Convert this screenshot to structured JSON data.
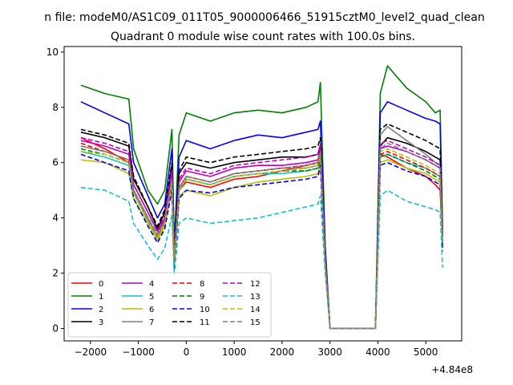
{
  "figure": {
    "suptitle": "n file: modeM0/AS1C09_011T05_9000006466_51915cztM0_level2_quad_clean",
    "offset_text": "+4.84e8"
  },
  "chart_data": {
    "type": "line",
    "title": "Quadrant 0 module wise count rates with 100.0s bins.",
    "xlabel": "",
    "ylabel": "",
    "x_offset": 484000000,
    "xlim": [
      -2550,
      5750
    ],
    "ylim": [
      -0.45,
      10.2
    ],
    "x_ticks": [
      -2000,
      -1000,
      0,
      1000,
      2000,
      3000,
      4000,
      5000
    ],
    "x_tick_labels": [
      "−2000",
      "−1000",
      "0",
      "1000",
      "2000",
      "3000",
      "4000",
      "5000"
    ],
    "y_ticks": [
      0,
      2,
      4,
      6,
      8,
      10
    ],
    "y_tick_labels": [
      "0",
      "2",
      "4",
      "6",
      "8",
      "10"
    ],
    "grid": false,
    "legend_position": "lower-left",
    "legend_columns": 4,
    "x": [
      -2200,
      -1700,
      -1200,
      -1100,
      -800,
      -600,
      -450,
      -300,
      -250,
      -150,
      0,
      500,
      1000,
      1500,
      2000,
      2500,
      2750,
      2800,
      2900,
      3000,
      3500,
      3950,
      4050,
      4200,
      4600,
      5000,
      5200,
      5300,
      5350
    ],
    "series": [
      {
        "name": "0",
        "color": "#ff0000",
        "dash": "solid",
        "values": [
          6.9,
          6.5,
          6.0,
          5.0,
          4.0,
          3.3,
          4.0,
          5.5,
          2.5,
          5.0,
          5.3,
          5.1,
          5.4,
          5.5,
          5.7,
          5.9,
          6.0,
          6.5,
          2.5,
          0,
          0,
          0,
          6.3,
          6.2,
          5.8,
          5.5,
          5.2,
          5.0,
          3.2
        ]
      },
      {
        "name": "1",
        "color": "#008000",
        "dash": "solid",
        "values": [
          8.8,
          8.5,
          8.3,
          6.5,
          5.0,
          4.5,
          5.0,
          7.2,
          3.0,
          7.0,
          7.8,
          7.5,
          7.8,
          7.9,
          7.8,
          8.0,
          8.2,
          8.9,
          3.0,
          0,
          0,
          0,
          8.5,
          9.5,
          8.7,
          8.2,
          7.8,
          7.9,
          3.6
        ]
      },
      {
        "name": "2",
        "color": "#0000ff",
        "dash": "solid",
        "values": [
          8.2,
          7.8,
          7.4,
          6.0,
          4.8,
          4.0,
          4.5,
          6.5,
          2.8,
          6.2,
          6.8,
          6.5,
          6.8,
          7.0,
          6.9,
          7.1,
          7.2,
          7.5,
          2.9,
          0,
          0,
          0,
          7.8,
          8.2,
          7.9,
          7.6,
          7.5,
          7.4,
          3.5
        ]
      },
      {
        "name": "3",
        "color": "#000000",
        "dash": "solid",
        "values": [
          7.1,
          6.9,
          6.6,
          5.4,
          4.4,
          3.6,
          4.2,
          5.9,
          2.6,
          5.6,
          6.0,
          5.8,
          6.0,
          6.1,
          6.2,
          6.2,
          6.3,
          6.6,
          2.6,
          0,
          0,
          0,
          6.6,
          6.9,
          6.7,
          6.4,
          6.2,
          6.1,
          3.3
        ]
      },
      {
        "name": "4",
        "color": "#c000c0",
        "dash": "solid",
        "values": [
          6.8,
          6.6,
          6.3,
          5.2,
          4.2,
          3.5,
          4.0,
          5.6,
          2.5,
          5.3,
          5.7,
          5.5,
          5.8,
          5.9,
          5.9,
          6.0,
          6.1,
          6.5,
          2.5,
          0,
          0,
          0,
          6.5,
          6.6,
          6.4,
          6.1,
          5.9,
          5.8,
          3.2
        ]
      },
      {
        "name": "5",
        "color": "#17becf",
        "dash": "solid",
        "values": [
          6.4,
          6.2,
          5.9,
          4.9,
          3.9,
          3.3,
          3.8,
          5.3,
          2.3,
          5.0,
          5.4,
          5.2,
          5.5,
          5.6,
          5.6,
          5.7,
          5.8,
          6.2,
          2.4,
          0,
          0,
          0,
          6.2,
          6.3,
          6.0,
          5.8,
          5.6,
          5.5,
          3.0
        ]
      },
      {
        "name": "6",
        "color": "#bcbd00",
        "dash": "solid",
        "values": [
          6.1,
          6.0,
          5.6,
          4.7,
          3.8,
          3.2,
          3.7,
          5.1,
          2.3,
          4.8,
          5.0,
          4.8,
          5.1,
          5.3,
          5.4,
          5.5,
          5.6,
          6.0,
          2.3,
          0,
          0,
          0,
          6.0,
          6.1,
          5.8,
          5.6,
          5.4,
          5.3,
          2.9
        ]
      },
      {
        "name": "7",
        "color": "#7f7f7f",
        "dash": "solid",
        "values": [
          6.6,
          6.4,
          6.1,
          5.0,
          4.0,
          3.3,
          3.9,
          5.4,
          2.4,
          5.1,
          5.5,
          5.3,
          5.6,
          5.7,
          5.8,
          5.8,
          5.9,
          6.3,
          2.4,
          0,
          0,
          0,
          7.0,
          7.3,
          6.8,
          6.3,
          6.0,
          5.9,
          3.1
        ]
      },
      {
        "name": "8",
        "color": "#ff0000",
        "dash": "dashed",
        "values": [
          6.7,
          6.4,
          6.1,
          5.0,
          4.0,
          3.4,
          3.9,
          5.4,
          2.4,
          5.1,
          5.5,
          5.3,
          5.6,
          5.7,
          5.8,
          5.9,
          6.0,
          6.4,
          2.4,
          0,
          0,
          0,
          6.3,
          6.4,
          6.1,
          5.8,
          5.6,
          5.5,
          3.1
        ]
      },
      {
        "name": "9",
        "color": "#008000",
        "dash": "dashed",
        "values": [
          6.5,
          6.3,
          6.0,
          4.9,
          3.9,
          3.3,
          3.8,
          5.3,
          2.4,
          5.0,
          5.4,
          5.2,
          5.5,
          5.6,
          5.7,
          5.7,
          5.8,
          6.2,
          2.4,
          0,
          0,
          0,
          6.2,
          6.3,
          6.0,
          5.7,
          5.5,
          5.4,
          3.0
        ]
      },
      {
        "name": "10",
        "color": "#0000ff",
        "dash": "dashed",
        "values": [
          6.3,
          6.0,
          5.7,
          4.7,
          3.7,
          3.1,
          3.6,
          5.0,
          2.2,
          4.7,
          5.0,
          4.9,
          5.1,
          5.2,
          5.3,
          5.4,
          5.5,
          5.9,
          2.3,
          0,
          0,
          0,
          5.9,
          6.0,
          5.7,
          5.5,
          5.3,
          5.2,
          2.8
        ]
      },
      {
        "name": "11",
        "color": "#000000",
        "dash": "dashed",
        "values": [
          7.2,
          7.0,
          6.7,
          5.5,
          4.4,
          3.7,
          4.3,
          6.0,
          2.6,
          5.7,
          6.2,
          6.0,
          6.2,
          6.3,
          6.4,
          6.5,
          6.6,
          6.9,
          2.7,
          0,
          0,
          0,
          7.2,
          7.4,
          7.1,
          6.8,
          6.6,
          6.5,
          3.4
        ]
      },
      {
        "name": "12",
        "color": "#c000c0",
        "dash": "dashed",
        "values": [
          6.9,
          6.7,
          6.4,
          5.2,
          4.2,
          3.5,
          4.1,
          5.7,
          2.5,
          5.4,
          5.8,
          5.6,
          5.9,
          6.0,
          6.1,
          6.2,
          6.3,
          6.7,
          2.6,
          0,
          0,
          0,
          6.7,
          6.8,
          6.5,
          6.2,
          6.0,
          5.9,
          3.2
        ]
      },
      {
        "name": "13",
        "color": "#17becf",
        "dash": "dashed",
        "values": [
          5.1,
          5.0,
          4.6,
          3.8,
          3.0,
          2.5,
          2.9,
          4.1,
          1.9,
          3.8,
          4.0,
          3.8,
          3.9,
          4.0,
          4.2,
          4.4,
          4.5,
          4.8,
          2.0,
          0,
          0,
          0,
          4.8,
          5.0,
          4.6,
          4.4,
          4.3,
          4.2,
          2.2
        ]
      },
      {
        "name": "14",
        "color": "#bcbd00",
        "dash": "dashed",
        "values": [
          6.4,
          6.3,
          6.0,
          4.9,
          3.9,
          3.3,
          3.8,
          5.3,
          2.4,
          5.0,
          5.4,
          5.2,
          5.5,
          5.6,
          5.7,
          5.8,
          5.9,
          6.3,
          2.4,
          0,
          0,
          0,
          6.4,
          6.5,
          6.2,
          5.9,
          5.7,
          5.6,
          3.1
        ]
      },
      {
        "name": "15",
        "color": "#7f7f7f",
        "dash": "dashed",
        "values": [
          6.6,
          6.4,
          6.1,
          5.0,
          4.0,
          3.4,
          3.9,
          5.4,
          2.4,
          5.1,
          5.5,
          5.3,
          5.6,
          5.7,
          5.8,
          5.9,
          6.0,
          6.4,
          2.4,
          0,
          0,
          0,
          6.5,
          6.7,
          6.4,
          6.1,
          5.9,
          5.8,
          3.1
        ]
      }
    ]
  }
}
